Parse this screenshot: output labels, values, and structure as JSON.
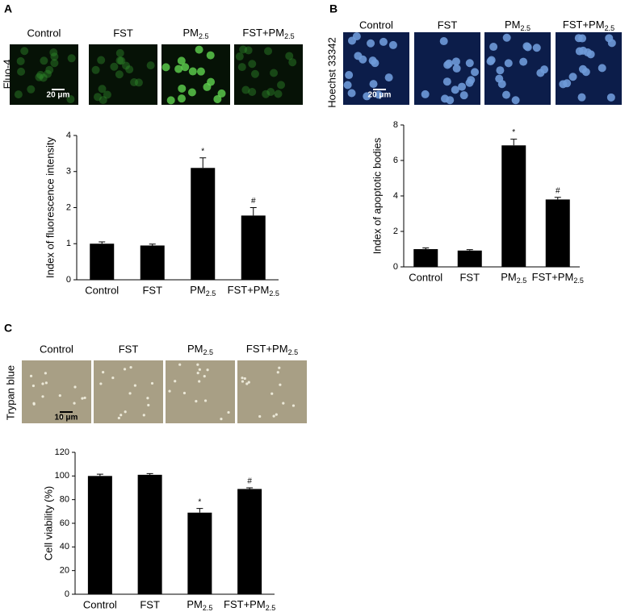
{
  "panels": [
    {
      "label": "A",
      "stain": "Fluo-4",
      "scale_bar": "20 μm",
      "columns": [
        "Control",
        "FST",
        "PM2.5",
        "FST+PM2.5"
      ]
    },
    {
      "label": "B",
      "stain": "Hoechst 33342",
      "scale_bar": "20 μm",
      "columns": [
        "Control",
        "FST",
        "PM2.5",
        "FST+PM2.5"
      ]
    },
    {
      "label": "C",
      "stain": "Trypan blue",
      "scale_bar": "10 μm",
      "columns": [
        "Control",
        "FST",
        "PM2.5",
        "FST+PM2.5"
      ]
    }
  ],
  "chart_data": [
    {
      "type": "bar",
      "y_label": "Index of fluorescence intensity",
      "categories": [
        "Control",
        "FST",
        "PM2.5",
        "FST+PM2.5"
      ],
      "values": [
        1.0,
        0.95,
        3.1,
        1.78
      ],
      "errors": [
        0.05,
        0.04,
        0.28,
        0.22
      ],
      "markers": [
        null,
        null,
        "*",
        "#"
      ],
      "color": "#000000",
      "ylim": [
        0,
        4
      ],
      "yticks": [
        0,
        1,
        2,
        3,
        4
      ]
    },
    {
      "type": "bar",
      "y_label": "Index of apoptotic bodies",
      "categories": [
        "Control",
        "FST",
        "PM2.5",
        "FST+PM2.5"
      ],
      "values": [
        1.0,
        0.92,
        6.85,
        3.8
      ],
      "errors": [
        0.07,
        0.05,
        0.35,
        0.12
      ],
      "markers": [
        null,
        null,
        "*",
        "#"
      ],
      "color": "#000000",
      "ylim": [
        0,
        8
      ],
      "yticks": [
        0,
        2,
        4,
        6,
        8
      ]
    },
    {
      "type": "bar",
      "y_label": "Cell viability (%)",
      "categories": [
        "Control",
        "FST",
        "PM2.5",
        "FST+PM2.5"
      ],
      "values": [
        100,
        101,
        69,
        89
      ],
      "errors": [
        1.5,
        1,
        3.5,
        1
      ],
      "markers": [
        null,
        null,
        "*",
        "#"
      ],
      "color": "#000000",
      "ylim": [
        0,
        120
      ],
      "yticks": [
        0,
        20,
        40,
        60,
        80,
        100,
        120
      ]
    }
  ]
}
